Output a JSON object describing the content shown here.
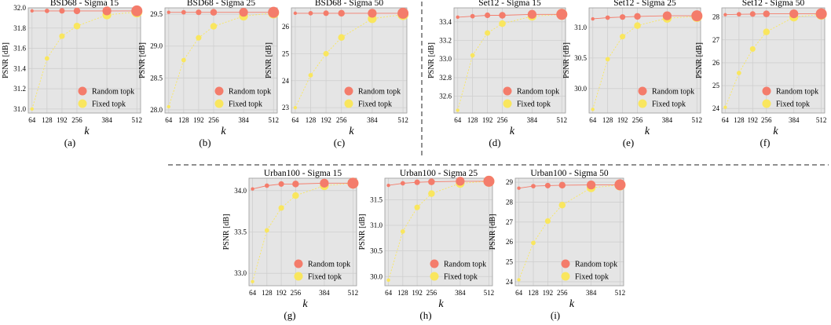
{
  "colors": {
    "random": "#f47c6b",
    "fixed": "#f9e65e",
    "panel_bg": "#e5e5e5",
    "grid": "#cfcfcf"
  },
  "chart_data": [
    {
      "type": "scatter",
      "title": "BSD68 - Sigma 15",
      "xlabel": "k",
      "ylabel": "PSNR [dB]",
      "caption": "(a)",
      "x": [
        64,
        128,
        192,
        256,
        384,
        512
      ],
      "xticks": [
        64,
        128,
        192,
        256,
        384,
        512
      ],
      "yticks": [
        31.0,
        31.2,
        31.4,
        31.6,
        31.8,
        32.0
      ],
      "ylim": [
        30.96,
        32.0
      ],
      "series": [
        {
          "name": "Random topk",
          "values": [
            31.97,
            31.97,
            31.97,
            31.97,
            31.97,
            31.97
          ]
        },
        {
          "name": "Fixed topk",
          "values": [
            31.0,
            31.5,
            31.72,
            31.82,
            31.93,
            31.96
          ]
        }
      ],
      "legend": "bottom-right",
      "grid": true
    },
    {
      "type": "scatter",
      "title": "BSD68 - Sigma 25",
      "xlabel": "k",
      "ylabel": "PSNR [dB]",
      "caption": "(b)",
      "x": [
        64,
        128,
        192,
        256,
        384,
        512
      ],
      "xticks": [
        64,
        128,
        192,
        256,
        384,
        512
      ],
      "yticks": [
        28.0,
        28.5,
        29.0,
        29.5
      ],
      "ylim": [
        27.95,
        29.6
      ],
      "series": [
        {
          "name": "Random topk",
          "values": [
            29.53,
            29.53,
            29.53,
            29.53,
            29.53,
            29.53
          ]
        },
        {
          "name": "Fixed topk",
          "values": [
            28.05,
            28.78,
            29.13,
            29.31,
            29.47,
            29.52
          ]
        }
      ],
      "legend": "bottom-right",
      "grid": true
    },
    {
      "type": "scatter",
      "title": "BSD68 - Sigma 50",
      "xlabel": "k",
      "ylabel": "PSNR [dB]",
      "caption": "(c)",
      "x": [
        64,
        128,
        192,
        256,
        384,
        512
      ],
      "xticks": [
        64,
        128,
        192,
        256,
        384,
        512
      ],
      "yticks": [
        23,
        24,
        25,
        26
      ],
      "ylim": [
        22.8,
        26.7
      ],
      "series": [
        {
          "name": "Random topk",
          "values": [
            26.5,
            26.5,
            26.5,
            26.5,
            26.5,
            26.5
          ]
        },
        {
          "name": "Fixed topk",
          "values": [
            23.0,
            24.2,
            25.0,
            25.6,
            26.3,
            26.45
          ]
        }
      ],
      "legend": "bottom-right",
      "grid": true
    },
    {
      "type": "scatter",
      "title": "Set12 - Sigma 15",
      "xlabel": "k",
      "ylabel": "PSNR [dB]",
      "caption": "(d)",
      "x": [
        64,
        128,
        192,
        256,
        384,
        512
      ],
      "xticks": [
        64,
        128,
        192,
        256,
        384,
        512
      ],
      "yticks": [
        32.6,
        32.8,
        33.0,
        33.2,
        33.4
      ],
      "ylim": [
        32.42,
        33.55
      ],
      "series": [
        {
          "name": "Random topk",
          "values": [
            33.45,
            33.46,
            33.47,
            33.47,
            33.48,
            33.48
          ]
        },
        {
          "name": "Fixed topk",
          "values": [
            32.45,
            33.04,
            33.28,
            33.38,
            33.46,
            33.48
          ]
        }
      ],
      "legend": "bottom-right",
      "grid": true
    },
    {
      "type": "scatter",
      "title": "Set12 - Sigma 25",
      "xlabel": "k",
      "ylabel": "PSNR [dB]",
      "caption": "(e)",
      "x": [
        64,
        128,
        192,
        256,
        384,
        512
      ],
      "xticks": [
        64,
        128,
        192,
        256,
        384,
        512
      ],
      "yticks": [
        30.0,
        30.5,
        31.0
      ],
      "ylim": [
        29.6,
        31.32
      ],
      "series": [
        {
          "name": "Random topk",
          "values": [
            31.14,
            31.16,
            31.17,
            31.18,
            31.19,
            31.19
          ]
        },
        {
          "name": "Fixed topk",
          "values": [
            29.66,
            30.48,
            30.85,
            31.03,
            31.15,
            31.18
          ]
        }
      ],
      "legend": "bottom-right",
      "grid": true
    },
    {
      "type": "scatter",
      "title": "Set12 - Sigma 50",
      "xlabel": "k",
      "ylabel": "PSNR [dB]",
      "caption": "(f)",
      "x": [
        64,
        128,
        192,
        256,
        384,
        512
      ],
      "xticks": [
        64,
        128,
        192,
        256,
        384,
        512
      ],
      "yticks": [
        24,
        25,
        26,
        27,
        28
      ],
      "ylim": [
        23.8,
        28.4
      ],
      "series": [
        {
          "name": "Random topk",
          "values": [
            28.1,
            28.12,
            28.13,
            28.14,
            28.14,
            28.14
          ]
        },
        {
          "name": "Fixed topk",
          "values": [
            24.05,
            25.55,
            26.6,
            27.35,
            28.0,
            28.12
          ]
        }
      ],
      "legend": "bottom-right",
      "grid": true
    },
    {
      "type": "scatter",
      "title": "Urban100 - Sigma 15",
      "xlabel": "k",
      "ylabel": "PSNR [dB]",
      "caption": "(g)",
      "x": [
        64,
        128,
        192,
        256,
        384,
        512
      ],
      "xticks": [
        64,
        128,
        192,
        256,
        384,
        512
      ],
      "yticks": [
        33.0,
        33.5,
        34.0
      ],
      "ylim": [
        32.85,
        34.15
      ],
      "series": [
        {
          "name": "Random topk",
          "values": [
            34.02,
            34.06,
            34.08,
            34.08,
            34.09,
            34.09
          ]
        },
        {
          "name": "Fixed topk",
          "values": [
            32.9,
            33.52,
            33.79,
            33.94,
            34.06,
            34.09
          ]
        }
      ],
      "legend": "bottom-right",
      "grid": true
    },
    {
      "type": "scatter",
      "title": "Urban100 - Sigma 25",
      "xlabel": "k",
      "ylabel": "PSNR [dB]",
      "caption": "(h)",
      "x": [
        64,
        128,
        192,
        256,
        384,
        512
      ],
      "xticks": [
        64,
        128,
        192,
        256,
        384,
        512
      ],
      "yticks": [
        30.0,
        30.5,
        31.0,
        31.5
      ],
      "ylim": [
        29.82,
        31.92
      ],
      "series": [
        {
          "name": "Random topk",
          "values": [
            31.78,
            31.82,
            31.84,
            31.85,
            31.86,
            31.86
          ]
        },
        {
          "name": "Fixed topk",
          "values": [
            29.93,
            30.88,
            31.35,
            31.62,
            31.82,
            31.86
          ]
        }
      ],
      "legend": "bottom-right",
      "grid": true
    },
    {
      "type": "scatter",
      "title": "Urban100 - Sigma 50",
      "xlabel": "k",
      "ylabel": "PSNR [dB]",
      "caption": "(i)",
      "x": [
        64,
        128,
        192,
        256,
        384,
        512
      ],
      "xticks": [
        64,
        128,
        192,
        256,
        384,
        512
      ],
      "yticks": [
        24,
        25,
        26,
        27,
        28,
        29
      ],
      "ylim": [
        23.8,
        29.2
      ],
      "series": [
        {
          "name": "Random topk",
          "values": [
            28.7,
            28.8,
            28.83,
            28.85,
            28.86,
            28.87
          ]
        },
        {
          "name": "Fixed topk",
          "values": [
            24.1,
            25.95,
            27.05,
            27.85,
            28.72,
            28.86
          ]
        }
      ],
      "legend": "bottom-right",
      "grid": true
    }
  ]
}
